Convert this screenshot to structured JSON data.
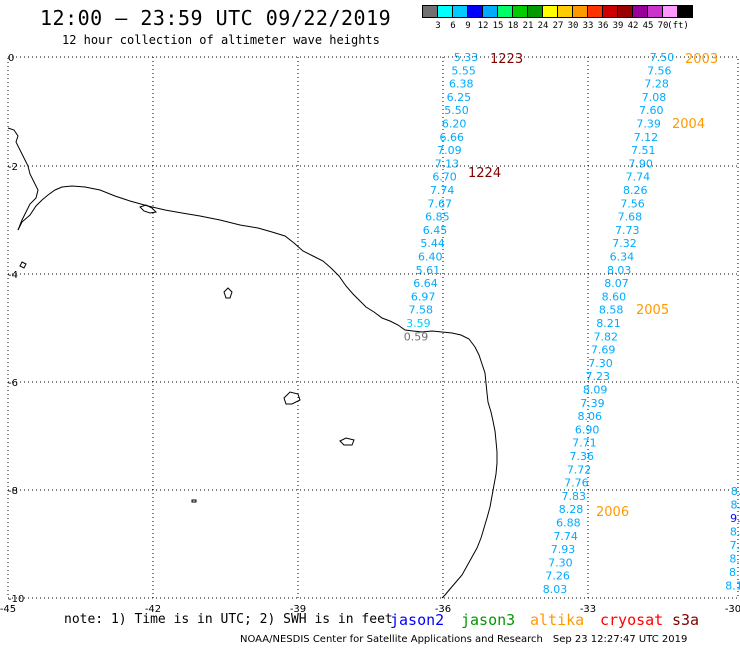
{
  "title": "12:00 – 23:59 UTC 09/22/2019",
  "subtitle": "12 hour collection of altimeter wave heights",
  "scale": {
    "colors": [
      "#707070",
      "#00ffff",
      "#00ccff",
      "#0000ff",
      "#00aaff",
      "#00ff66",
      "#00cc00",
      "#009900",
      "#ffff00",
      "#ffcc00",
      "#ff9900",
      "#ff3300",
      "#cc0000",
      "#990000",
      "#990099",
      "#cc33cc",
      "#ff99ff",
      "#000000"
    ],
    "labels": [
      "3",
      "6",
      "9",
      "12",
      "15",
      "18",
      "21",
      "24",
      "27",
      "30",
      "33",
      "36",
      "39",
      "42",
      "45",
      "70",
      "(ft)"
    ]
  },
  "axes": {
    "x_ticks": [
      "-45",
      "-42",
      "-39",
      "-36",
      "-33",
      "-30"
    ],
    "y_ticks": [
      "0",
      "-2",
      "-4",
      "-6",
      "-8",
      "-10"
    ]
  },
  "tracks": {
    "track1": [
      "5.33",
      "5.55",
      "6.38",
      "6.25",
      "5.50",
      "6.20",
      "6.66",
      "7.09",
      "7.13",
      "6.70",
      "7.74",
      "7.67",
      "6.85",
      "6.45",
      "5.44",
      "6.40",
      "5.61",
      "6.64",
      "6.97",
      "7.58",
      "3.59",
      "0.59"
    ],
    "track2": [
      "7.50",
      "7.56",
      "7.28",
      "7.08",
      "7.60",
      "7.39",
      "7.12",
      "7.51",
      "7.90",
      "7.74",
      "8.26",
      "7.56",
      "7.68",
      "7.73",
      "7.32",
      "6.34",
      "8.03",
      "8.07",
      "8.60",
      "8.58",
      "8.21",
      "7.82",
      "7.69",
      "7.30",
      "7.23",
      "8.09",
      "7.39",
      "8.06",
      "6.90",
      "7.71",
      "7.36",
      "7.72",
      "7.76",
      "7.83",
      "8.28",
      "6.88",
      "7.74",
      "7.93",
      "7.30",
      "7.26",
      "8.03"
    ],
    "track3": [
      "8.",
      "8.",
      "9.",
      "8.",
      "7.",
      "8.",
      "8.",
      "8.1"
    ]
  },
  "time_labels": [
    {
      "text": "1223",
      "color": "#800000"
    },
    {
      "text": "1224",
      "color": "#800000"
    },
    {
      "text": "2003",
      "color": "#ff9900"
    },
    {
      "text": "2004",
      "color": "#ff9900"
    },
    {
      "text": "2005",
      "color": "#ff9900"
    },
    {
      "text": "2006",
      "color": "#ff9900"
    }
  ],
  "note": "note: 1) Time is in UTC; 2) SWH is in feet",
  "satellites": [
    {
      "name": "jason2",
      "color": "#0000ff"
    },
    {
      "name": "jason3",
      "color": "#009900"
    },
    {
      "name": "altika",
      "color": "#ff9900"
    },
    {
      "name": "cryosat",
      "color": "#ff0000"
    },
    {
      "name": "s3a",
      "color": "#800000"
    }
  ],
  "footer": "NOAA/NESDIS Center for Satellite Applications and Research",
  "timestamp": "Sep 23 12:27:47 UTC 2019"
}
